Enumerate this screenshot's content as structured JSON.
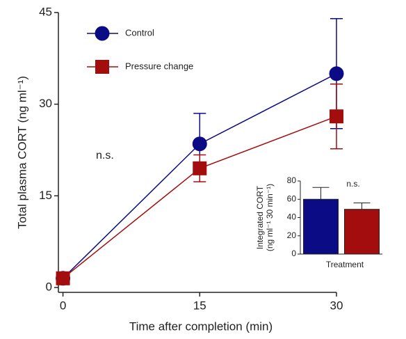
{
  "chart_data": [
    {
      "type": "line",
      "xlabel": "Time after completion (min)",
      "ylabel": "Total plasma CORT (ng ml⁻¹)",
      "annotation": "n.s.",
      "x": [
        0,
        15,
        30
      ],
      "series": [
        {
          "name": "Control",
          "color": "#0b0b85",
          "marker": "circle",
          "values": [
            1.5,
            23.5,
            35
          ],
          "errors": [
            0,
            5,
            9
          ]
        },
        {
          "name": "Pressure change",
          "color": "#a30d0d",
          "marker": "square",
          "values": [
            1.5,
            19.5,
            28
          ],
          "errors": [
            0,
            2.2,
            5.3
          ]
        }
      ],
      "xlim": [
        -0.5,
        30
      ],
      "xticks": [
        0,
        15,
        30
      ],
      "ylim": [
        -0.8,
        45
      ],
      "yticks": [
        0,
        15,
        30,
        45
      ],
      "legend": "top-left"
    },
    {
      "type": "bar",
      "xlabel": "Treatment",
      "ylabel": [
        "Integrated CORT",
        "(ng ml⁻¹ 30 min⁻¹)"
      ],
      "annotation": "n.s.",
      "values": [
        60,
        49
      ],
      "errors": [
        13,
        7
      ],
      "colors": [
        "#0b0b85",
        "#a30d0d"
      ],
      "ylim": [
        0,
        80
      ],
      "yticks": [
        0,
        20,
        40,
        60,
        80
      ]
    }
  ]
}
